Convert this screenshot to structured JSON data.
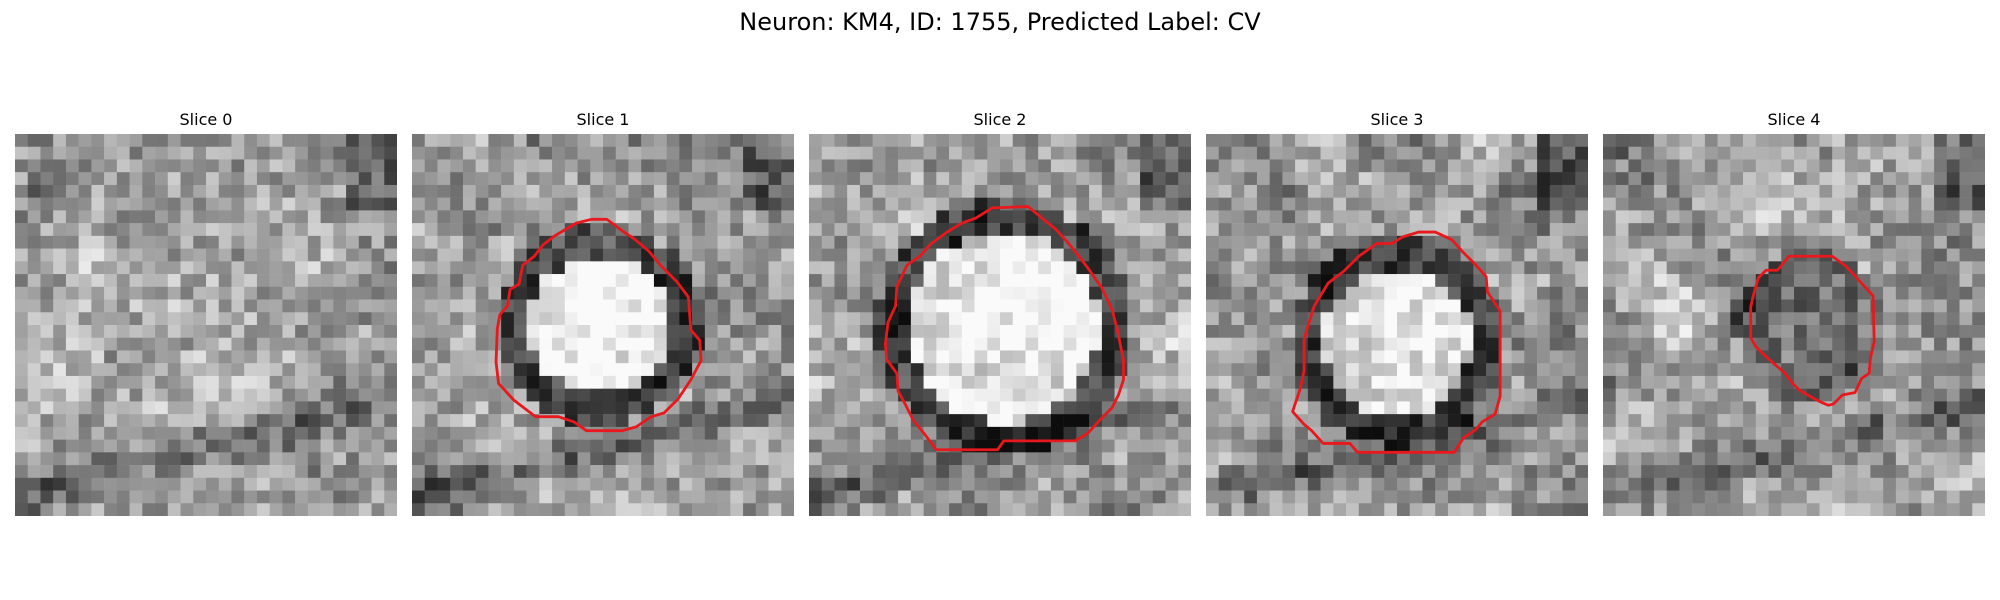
{
  "figure": {
    "title": "Neuron: KM4, ID: 1755, Predicted Label: CV",
    "contour_color": "#e8181c"
  },
  "slices": [
    {
      "label": "Slice 0",
      "seed": 11,
      "style": 0
    },
    {
      "label": "Slice 1",
      "seed": 27,
      "style": 1
    },
    {
      "label": "Slice 2",
      "seed": 43,
      "style": 2
    },
    {
      "label": "Slice 3",
      "seed": 59,
      "style": 3
    },
    {
      "label": "Slice 4",
      "seed": 71,
      "style": 4
    }
  ]
}
